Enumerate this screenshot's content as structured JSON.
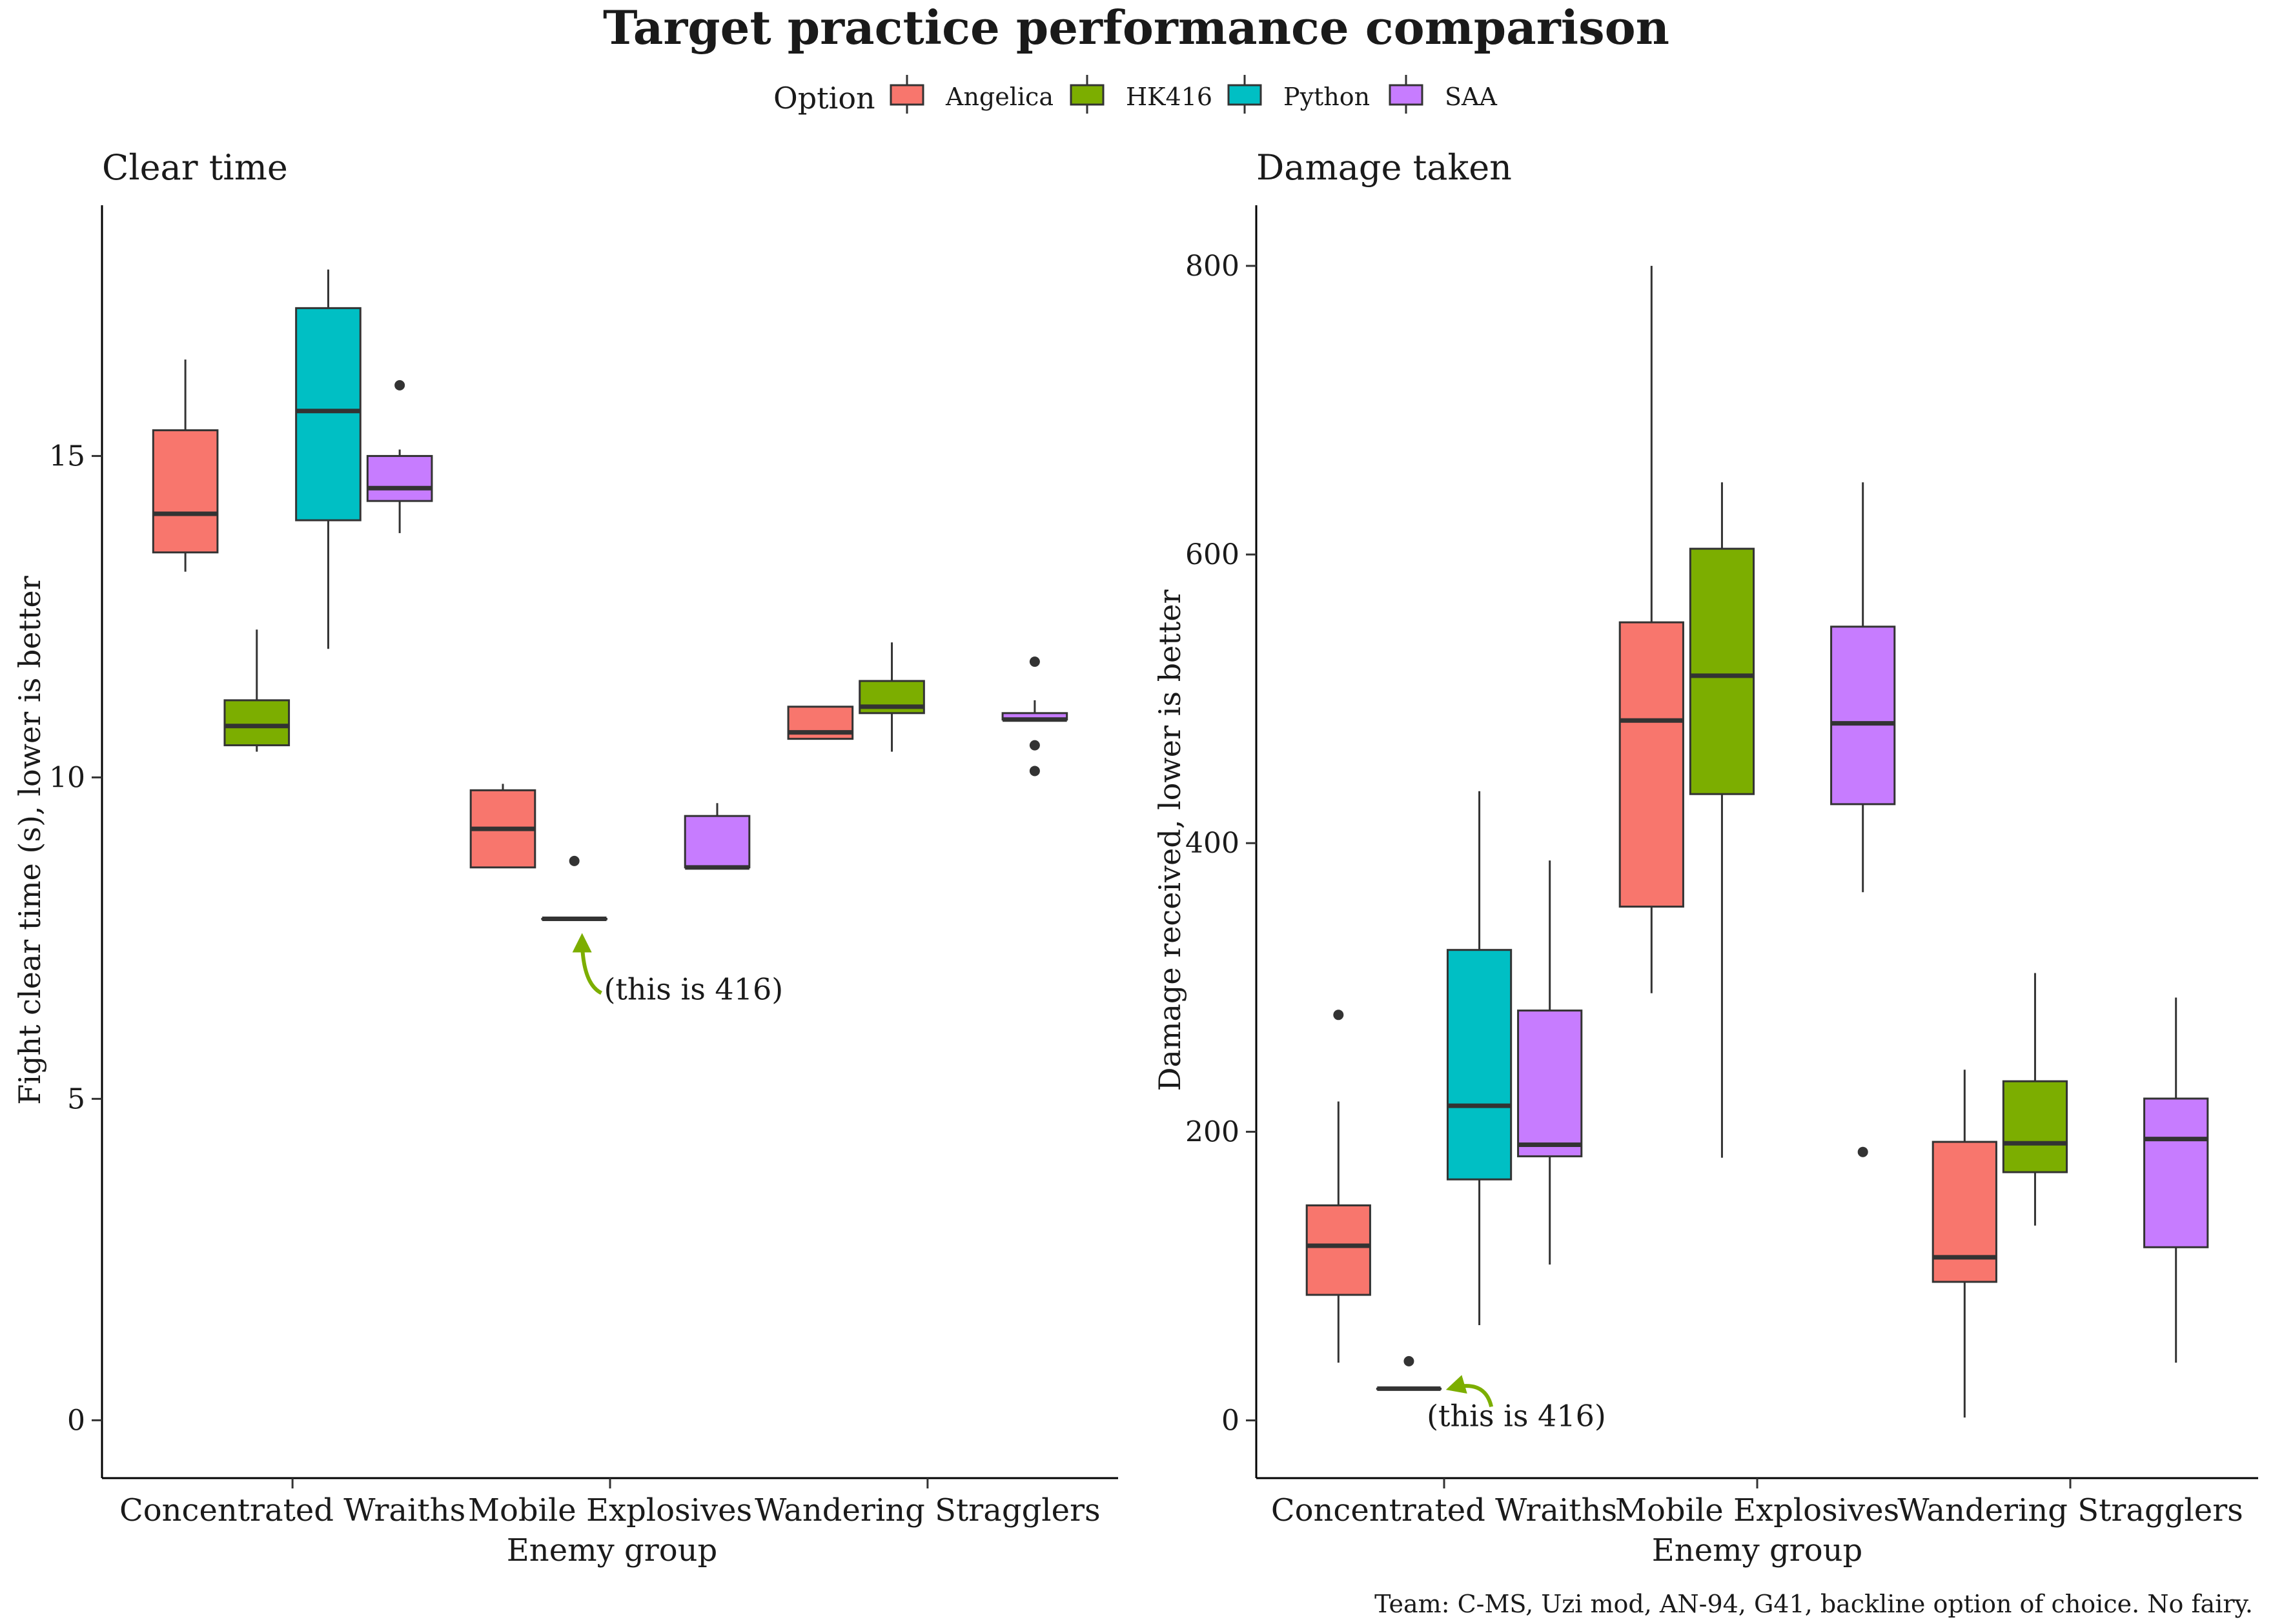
{
  "figure": {
    "title": "Target practice performance comparison",
    "caption": "Team: C-MS, Uzi mod, AN-94, G41, backline option of choice. No fairy.",
    "legend": {
      "title": "Option",
      "placement": "top-center",
      "entries": [
        {
          "name": "Angelica",
          "color": "#F8766D"
        },
        {
          "name": "HK416",
          "color": "#7CAE00"
        },
        {
          "name": "Python",
          "color": "#00BFC4"
        },
        {
          "name": "SAA",
          "color": "#C77CFF"
        }
      ]
    }
  },
  "chart_data": [
    {
      "type": "boxplot",
      "title": "Clear time",
      "xlabel": "Enemy group",
      "ylabel": "Fight clear time (s), lower is better",
      "categories": [
        "Concentrated Wraiths",
        "Mobile Explosives",
        "Wandering Stragglers"
      ],
      "ylim": [
        -0.9,
        18.9
      ],
      "yticks": [
        0,
        5,
        10,
        15
      ],
      "grid": false,
      "annotation": {
        "text": "(this is 416)",
        "category": "Mobile Explosives",
        "series": "HK416",
        "target": 7.7,
        "color": "#7CAE00"
      },
      "series": [
        {
          "name": "Angelica",
          "boxes": [
            {
              "category": "Concentrated Wraiths",
              "lower": 13.2,
              "q1": 13.5,
              "median": 14.1,
              "q3": 15.4,
              "upper": 16.5,
              "outliers": []
            },
            {
              "category": "Mobile Explosives",
              "lower": 8.6,
              "q1": 8.6,
              "median": 9.2,
              "q3": 9.8,
              "upper": 9.9,
              "outliers": []
            },
            {
              "category": "Wandering Stragglers",
              "lower": 10.6,
              "q1": 10.6,
              "median": 10.7,
              "q3": 11.1,
              "upper": 11.1,
              "outliers": []
            }
          ]
        },
        {
          "name": "HK416",
          "boxes": [
            {
              "category": "Concentrated Wraiths",
              "lower": 10.4,
              "q1": 10.5,
              "median": 10.8,
              "q3": 11.2,
              "upper": 12.3,
              "outliers": []
            },
            {
              "category": "Mobile Explosives",
              "lower": 7.8,
              "q1": 7.8,
              "median": 7.8,
              "q3": 7.8,
              "upper": 7.8,
              "outliers": [
                8.7
              ]
            },
            {
              "category": "Wandering Stragglers",
              "lower": 10.4,
              "q1": 11.0,
              "median": 11.1,
              "q3": 11.5,
              "upper": 12.1,
              "outliers": []
            }
          ]
        },
        {
          "name": "Python",
          "boxes": [
            {
              "category": "Concentrated Wraiths",
              "lower": 12.0,
              "q1": 14.0,
              "median": 15.7,
              "q3": 17.3,
              "upper": 17.9,
              "outliers": []
            },
            {
              "category": "Mobile Explosives",
              "absent": true
            },
            {
              "category": "Wandering Stragglers",
              "absent": true
            }
          ]
        },
        {
          "name": "SAA",
          "boxes": [
            {
              "category": "Concentrated Wraiths",
              "lower": 13.8,
              "q1": 14.3,
              "median": 14.5,
              "q3": 15.0,
              "upper": 15.1,
              "outliers": [
                16.1
              ]
            },
            {
              "category": "Mobile Explosives",
              "lower": 8.6,
              "q1": 8.6,
              "median": 8.6,
              "q3": 9.4,
              "upper": 9.6,
              "outliers": []
            },
            {
              "category": "Wandering Stragglers",
              "lower": 10.9,
              "q1": 10.9,
              "median": 10.9,
              "q3": 11.0,
              "upper": 11.2,
              "outliers": [
                11.8,
                10.5,
                10.1
              ]
            }
          ]
        }
      ]
    },
    {
      "type": "boxplot",
      "title": "Damage taken",
      "xlabel": "Enemy group",
      "ylabel": "Damage received, lower is better",
      "categories": [
        "Concentrated Wraiths",
        "Mobile Explosives",
        "Wandering Stragglers"
      ],
      "ylim": [
        -40,
        842
      ],
      "yticks": [
        0,
        200,
        400,
        600,
        800
      ],
      "grid": false,
      "annotation": {
        "text": "(this is 416)",
        "category": "Concentrated Wraiths",
        "series": "HK416",
        "target": 22,
        "color": "#7CAE00"
      },
      "series": [
        {
          "name": "Angelica",
          "boxes": [
            {
              "category": "Concentrated Wraiths",
              "lower": 40,
              "q1": 87,
              "median": 121,
              "q3": 149,
              "upper": 221,
              "outliers": [
                281
              ]
            },
            {
              "category": "Mobile Explosives",
              "lower": 296,
              "q1": 356,
              "median": 485,
              "q3": 553,
              "upper": 800,
              "outliers": []
            },
            {
              "category": "Wandering Stragglers",
              "lower": 2,
              "q1": 96,
              "median": 113,
              "q3": 193,
              "upper": 243,
              "outliers": []
            }
          ]
        },
        {
          "name": "HK416",
          "boxes": [
            {
              "category": "Concentrated Wraiths",
              "lower": 22,
              "q1": 22,
              "median": 22,
              "q3": 22,
              "upper": 22,
              "outliers": [
                41
              ]
            },
            {
              "category": "Mobile Explosives",
              "lower": 182,
              "q1": 434,
              "median": 516,
              "q3": 604,
              "upper": 650,
              "outliers": []
            },
            {
              "category": "Wandering Stragglers",
              "lower": 135,
              "q1": 172,
              "median": 192,
              "q3": 235,
              "upper": 310,
              "outliers": []
            }
          ]
        },
        {
          "name": "Python",
          "boxes": [
            {
              "category": "Concentrated Wraiths",
              "lower": 66,
              "q1": 167,
              "median": 218,
              "q3": 326,
              "upper": 436,
              "outliers": []
            },
            {
              "category": "Mobile Explosives",
              "absent": true
            },
            {
              "category": "Wandering Stragglers",
              "absent": true
            }
          ]
        },
        {
          "name": "SAA",
          "boxes": [
            {
              "category": "Concentrated Wraiths",
              "lower": 108,
              "q1": 183,
              "median": 191,
              "q3": 284,
              "upper": 388,
              "outliers": []
            },
            {
              "category": "Mobile Explosives",
              "lower": 366,
              "q1": 427,
              "median": 483,
              "q3": 550,
              "upper": 650,
              "outliers": [
                186
              ]
            },
            {
              "category": "Wandering Stragglers",
              "lower": 40,
              "q1": 120,
              "median": 195,
              "q3": 223,
              "upper": 293,
              "outliers": []
            }
          ]
        }
      ]
    }
  ]
}
